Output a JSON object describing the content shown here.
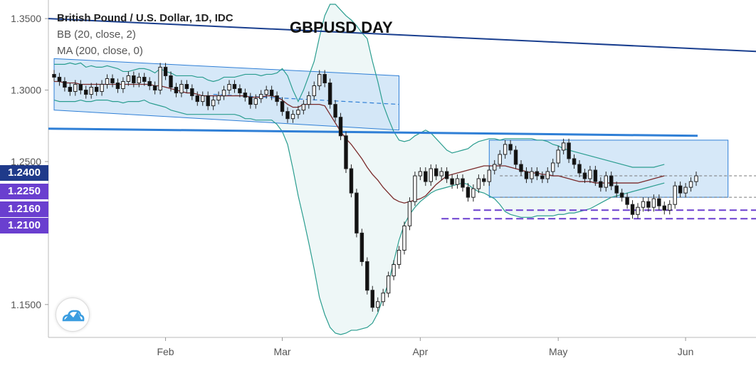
{
  "legend": {
    "symbol": "British Pound / U.S. Dollar, 1D, IDC",
    "bb": "BB (20, close, 2)",
    "ma": "MA (200, close, 0)"
  },
  "title": "GBPUSD DAY",
  "levels": [
    {
      "label": "1.2400",
      "value": 1.24
    },
    {
      "label": "1.2250",
      "value": 1.225
    },
    {
      "label": "1.2160",
      "value": 1.216
    },
    {
      "label": "1.2100",
      "value": 1.21
    }
  ],
  "chart_data": {
    "type": "candlestick",
    "title": "GBPUSD DAY",
    "ylim": [
      1.127,
      1.363
    ],
    "yticks": [
      "1.3500",
      "1.3000",
      "1.2500",
      "1.1500"
    ],
    "ytick_values": [
      1.35,
      1.3,
      1.25,
      1.15
    ],
    "xticks": [
      "Feb",
      "Mar",
      "Apr",
      "May",
      "Jun"
    ],
    "xtick_index": [
      21,
      43,
      69,
      95,
      119
    ],
    "x_count": 133,
    "closes": [
      1.309,
      1.306,
      1.302,
      1.299,
      1.304,
      1.3,
      1.297,
      1.302,
      1.299,
      1.304,
      1.308,
      1.305,
      1.301,
      1.306,
      1.31,
      1.305,
      1.309,
      1.306,
      1.303,
      1.3,
      1.316,
      1.31,
      1.302,
      1.298,
      1.304,
      1.301,
      1.296,
      1.292,
      1.296,
      1.289,
      1.293,
      1.296,
      1.3,
      1.304,
      1.301,
      1.298,
      1.295,
      1.29,
      1.294,
      1.297,
      1.3,
      1.296,
      1.292,
      1.285,
      1.28,
      1.283,
      1.286,
      1.29,
      1.296,
      1.303,
      1.311,
      1.305,
      1.29,
      1.281,
      1.268,
      1.245,
      1.228,
      1.2,
      1.18,
      1.16,
      1.148,
      1.152,
      1.158,
      1.17,
      1.178,
      1.188,
      1.205,
      1.222,
      1.24,
      1.243,
      1.236,
      1.245,
      1.24,
      1.243,
      1.238,
      1.234,
      1.238,
      1.232,
      1.225,
      1.231,
      1.238,
      1.236,
      1.244,
      1.248,
      1.255,
      1.262,
      1.258,
      1.248,
      1.243,
      1.238,
      1.243,
      1.24,
      1.238,
      1.243,
      1.249,
      1.258,
      1.263,
      1.252,
      1.248,
      1.242,
      1.238,
      1.244,
      1.236,
      1.232,
      1.24,
      1.233,
      1.228,
      1.225,
      1.22,
      1.213,
      1.218,
      1.222,
      1.218,
      1.224,
      1.219,
      1.216,
      1.22,
      1.233,
      1.228,
      1.232,
      1.236,
      1.24
    ],
    "bb_upper": [
      1.318,
      1.318,
      1.318,
      1.319,
      1.318,
      1.319,
      1.316,
      1.317,
      1.316,
      1.316,
      1.317,
      1.316,
      1.315,
      1.313,
      1.313,
      1.314,
      1.315,
      1.315,
      1.314,
      1.312,
      1.315,
      1.313,
      1.312,
      1.31,
      1.31,
      1.31,
      1.31,
      1.309,
      1.309,
      1.307,
      1.306,
      1.307,
      1.309,
      1.309,
      1.309,
      1.31,
      1.311,
      1.311,
      1.311,
      1.31,
      1.311,
      1.311,
      1.312,
      1.315,
      1.31,
      1.3,
      1.292,
      1.3,
      1.31,
      1.32,
      1.337,
      1.352,
      1.36,
      1.36,
      1.356,
      1.352,
      1.349,
      1.345,
      1.34,
      1.336,
      1.32,
      1.306,
      1.29,
      1.28,
      1.271,
      1.265,
      1.264,
      1.265,
      1.268,
      1.27,
      1.272,
      1.27,
      1.266,
      1.262,
      1.258,
      1.256,
      1.257,
      1.258,
      1.259,
      1.262,
      1.264,
      1.265,
      1.266,
      1.266,
      1.265,
      1.266,
      1.266,
      1.266,
      1.266,
      1.266,
      1.266,
      1.265,
      1.265,
      1.264,
      1.262,
      1.261,
      1.259,
      1.258,
      1.257,
      1.256,
      1.255,
      1.254,
      1.253,
      1.252,
      1.251,
      1.25,
      1.249,
      1.248,
      1.247,
      1.246,
      1.246,
      1.246,
      1.246,
      1.246,
      1.247,
      1.248
    ],
    "bb_lower": [
      1.293,
      1.292,
      1.292,
      1.292,
      1.292,
      1.293,
      1.292,
      1.292,
      1.293,
      1.293,
      1.293,
      1.292,
      1.292,
      1.291,
      1.292,
      1.292,
      1.292,
      1.293,
      1.291,
      1.29,
      1.289,
      1.288,
      1.286,
      1.285,
      1.284,
      1.283,
      1.283,
      1.283,
      1.283,
      1.283,
      1.283,
      1.283,
      1.283,
      1.283,
      1.283,
      1.282,
      1.28,
      1.28,
      1.279,
      1.279,
      1.279,
      1.279,
      1.276,
      1.271,
      1.262,
      1.245,
      1.226,
      1.21,
      1.193,
      1.175,
      1.155,
      1.143,
      1.134,
      1.13,
      1.129,
      1.13,
      1.132,
      1.132,
      1.133,
      1.134,
      1.137,
      1.144,
      1.155,
      1.165,
      1.18,
      1.195,
      1.206,
      1.213,
      1.218,
      1.222,
      1.225,
      1.228,
      1.23,
      1.231,
      1.232,
      1.233,
      1.234,
      1.235,
      1.234,
      1.231,
      1.229,
      1.228,
      1.226,
      1.224,
      1.22,
      1.215,
      1.213,
      1.212,
      1.211,
      1.211,
      1.211,
      1.212,
      1.212,
      1.212,
      1.212,
      1.213,
      1.213,
      1.214,
      1.214,
      1.215,
      1.216,
      1.217,
      1.219,
      1.221,
      1.223,
      1.225,
      1.226,
      1.227,
      1.228,
      1.229,
      1.23,
      1.231,
      1.232,
      1.233,
      1.234,
      1.235
    ],
    "ma": [
      1.306,
      1.306,
      1.305,
      1.305,
      1.305,
      1.304,
      1.304,
      1.304,
      1.304,
      1.304,
      1.304,
      1.304,
      1.304,
      1.304,
      1.304,
      1.304,
      1.304,
      1.304,
      1.304,
      1.303,
      1.303,
      1.302,
      1.301,
      1.3,
      1.299,
      1.298,
      1.298,
      1.297,
      1.296,
      1.296,
      1.296,
      1.296,
      1.296,
      1.296,
      1.296,
      1.296,
      1.296,
      1.295,
      1.295,
      1.295,
      1.296,
      1.296,
      1.295,
      1.293,
      1.29,
      1.288,
      1.288,
      1.29,
      1.29,
      1.29,
      1.29,
      1.289,
      1.283,
      1.277,
      1.271,
      1.266,
      1.262,
      1.257,
      1.252,
      1.246,
      1.241,
      1.237,
      1.232,
      1.228,
      1.224,
      1.222,
      1.221,
      1.222,
      1.223,
      1.224,
      1.226,
      1.23,
      1.234,
      1.237,
      1.24,
      1.241,
      1.242,
      1.243,
      1.244,
      1.245,
      1.246,
      1.247,
      1.247,
      1.247,
      1.247,
      1.247,
      1.246,
      1.245,
      1.244,
      1.243,
      1.242,
      1.242,
      1.241,
      1.241,
      1.24,
      1.24,
      1.239,
      1.238,
      1.237,
      1.236,
      1.236,
      1.236,
      1.235,
      1.235,
      1.235,
      1.235,
      1.235,
      1.235,
      1.235,
      1.235,
      1.235,
      1.236,
      1.237,
      1.238,
      1.239,
      1.24
    ]
  },
  "colors": {
    "upper_trend": "#1a3f8f",
    "channel_line": "#2f7fd6",
    "support_line": "#2f7fd6",
    "box_fill": "#cfe4f7",
    "bb_fill": "#eef7f7",
    "bb_line": "#2a9d8f",
    "ma_line": "#7a2a2a",
    "level_purple": "#6a3fcf"
  }
}
